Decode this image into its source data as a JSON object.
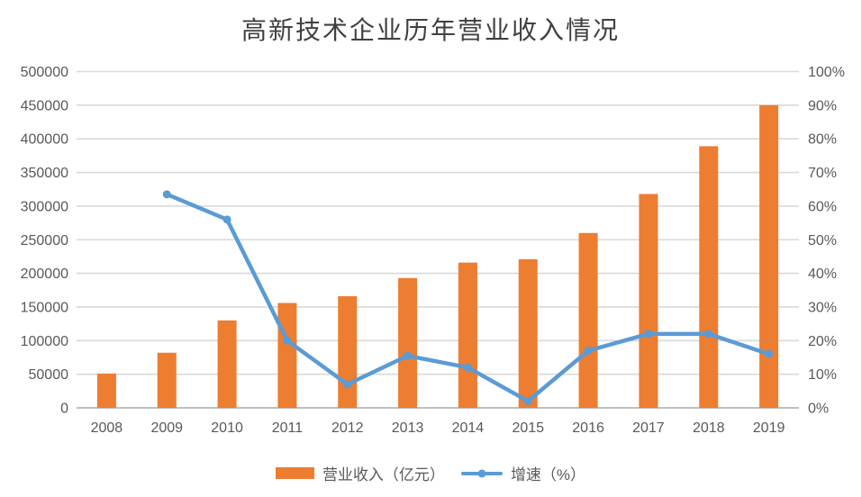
{
  "chart_data": {
    "type": "bar+line",
    "title": "高新技术企业历年营业收入情况",
    "categories": [
      "2008",
      "2009",
      "2010",
      "2011",
      "2012",
      "2013",
      "2014",
      "2015",
      "2016",
      "2017",
      "2018",
      "2019"
    ],
    "series": [
      {
        "name": "营业收入（亿元）",
        "type": "bar",
        "axis": "left",
        "color": "#ED7D31",
        "values": [
          51000,
          82000,
          130000,
          156000,
          166000,
          193000,
          216000,
          221000,
          260000,
          318000,
          389000,
          450000
        ]
      },
      {
        "name": "增速（%）",
        "type": "line",
        "axis": "right",
        "color": "#5B9BD5",
        "values": [
          null,
          63.5,
          56,
          20,
          7,
          15.5,
          12,
          2,
          17,
          22,
          22,
          16
        ]
      }
    ],
    "left_axis": {
      "min": 0,
      "max": 500000,
      "step": 50000
    },
    "right_axis": {
      "min": 0,
      "max": 100,
      "step": 10,
      "suffix": "%"
    },
    "grid": true,
    "legend_position": "bottom"
  },
  "colors": {
    "bar": "#ED7D31",
    "line": "#5B9BD5",
    "gridline": "#D9D9D9",
    "axis_line": "#BFBFBF",
    "axis_text": "#595959",
    "title_text": "#404040",
    "background": "#FFFFFF"
  }
}
